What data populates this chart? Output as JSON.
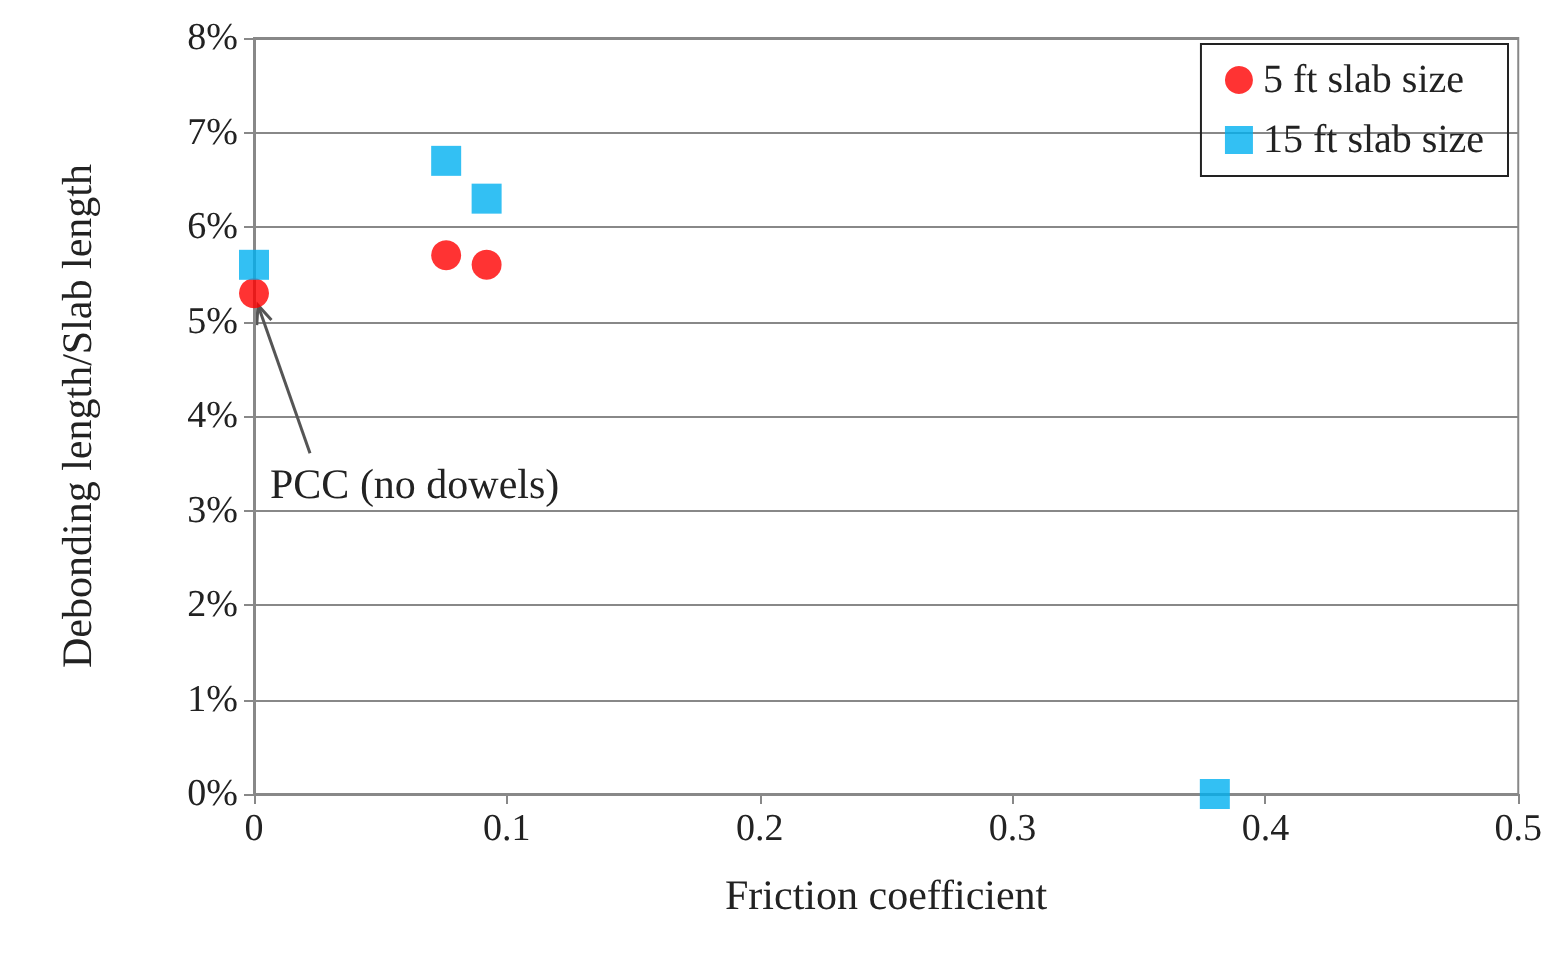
{
  "chart_data": {
    "type": "scatter",
    "xlabel": "Friction coefficient",
    "ylabel": "Debonding length/Slab length",
    "series": [
      {
        "name": "5 ft slab size",
        "color": "#ff0000",
        "marker": "circle",
        "x": [
          0,
          0.076,
          0.092
        ],
        "values": [
          5.3,
          5.7,
          5.6
        ]
      },
      {
        "name": "15 ft slab size",
        "color": "#00b0f0",
        "marker": "square",
        "x": [
          0,
          0.076,
          0.092,
          0.38
        ],
        "values": [
          5.6,
          6.7,
          6.3,
          0
        ]
      }
    ],
    "xlim": [
      0,
      0.5
    ],
    "xticks": [
      0,
      0.1,
      0.2,
      0.3,
      0.4,
      0.5
    ],
    "ylim": [
      0,
      8
    ],
    "yticks": [
      {
        "value": 0,
        "label": "0%"
      },
      {
        "value": 1,
        "label": "1%"
      },
      {
        "value": 2,
        "label": "2%"
      },
      {
        "value": 3,
        "label": "3%"
      },
      {
        "value": 4,
        "label": "4%"
      },
      {
        "value": 5,
        "label": "5%"
      },
      {
        "value": 6,
        "label": "6%"
      },
      {
        "value": 7,
        "label": "7%"
      },
      {
        "value": 8,
        "label": "8%"
      }
    ],
    "grid": "y",
    "legend": "top right",
    "annotations": [
      {
        "text": "PCC (no dowels)",
        "x": 0,
        "y": 5.3
      }
    ]
  }
}
